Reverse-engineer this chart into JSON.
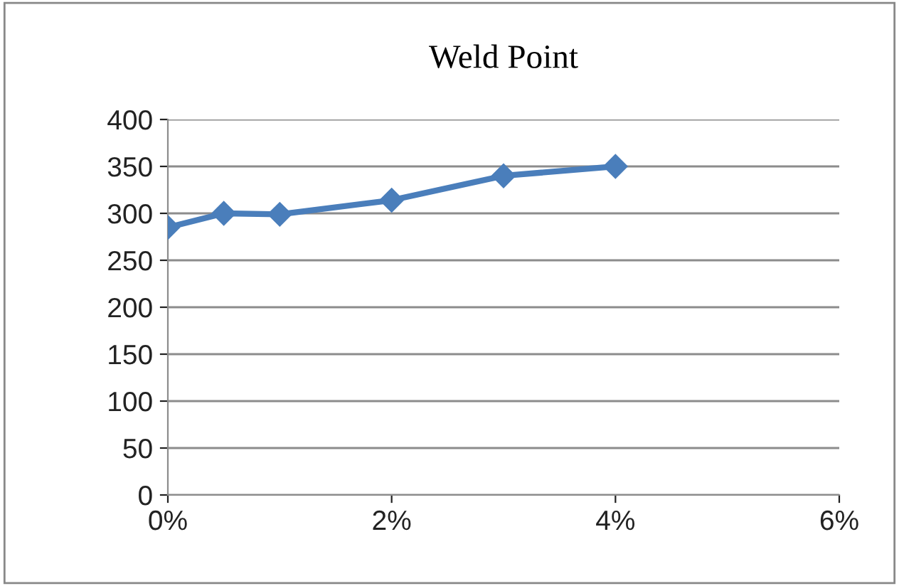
{
  "chart_data": {
    "type": "line",
    "title": "Weld Point",
    "x": [
      0,
      0.5,
      1,
      2,
      3,
      4
    ],
    "series": [
      {
        "color": "#4a7ebb",
        "values": [
          285,
          300,
          299,
          314,
          340,
          350
        ]
      }
    ],
    "xlim": [
      0,
      6
    ],
    "xticks": [
      {
        "value": 0,
        "label": "0%"
      },
      {
        "value": 2,
        "label": "2%"
      },
      {
        "value": 4,
        "label": "4%"
      },
      {
        "value": 6,
        "label": "6%"
      }
    ],
    "ylim": [
      0,
      400
    ],
    "yticks": [
      0,
      50,
      100,
      150,
      200,
      250,
      300,
      350,
      400
    ],
    "grid": "y",
    "marker": "diamond",
    "line_style": "solid",
    "legend": false
  }
}
